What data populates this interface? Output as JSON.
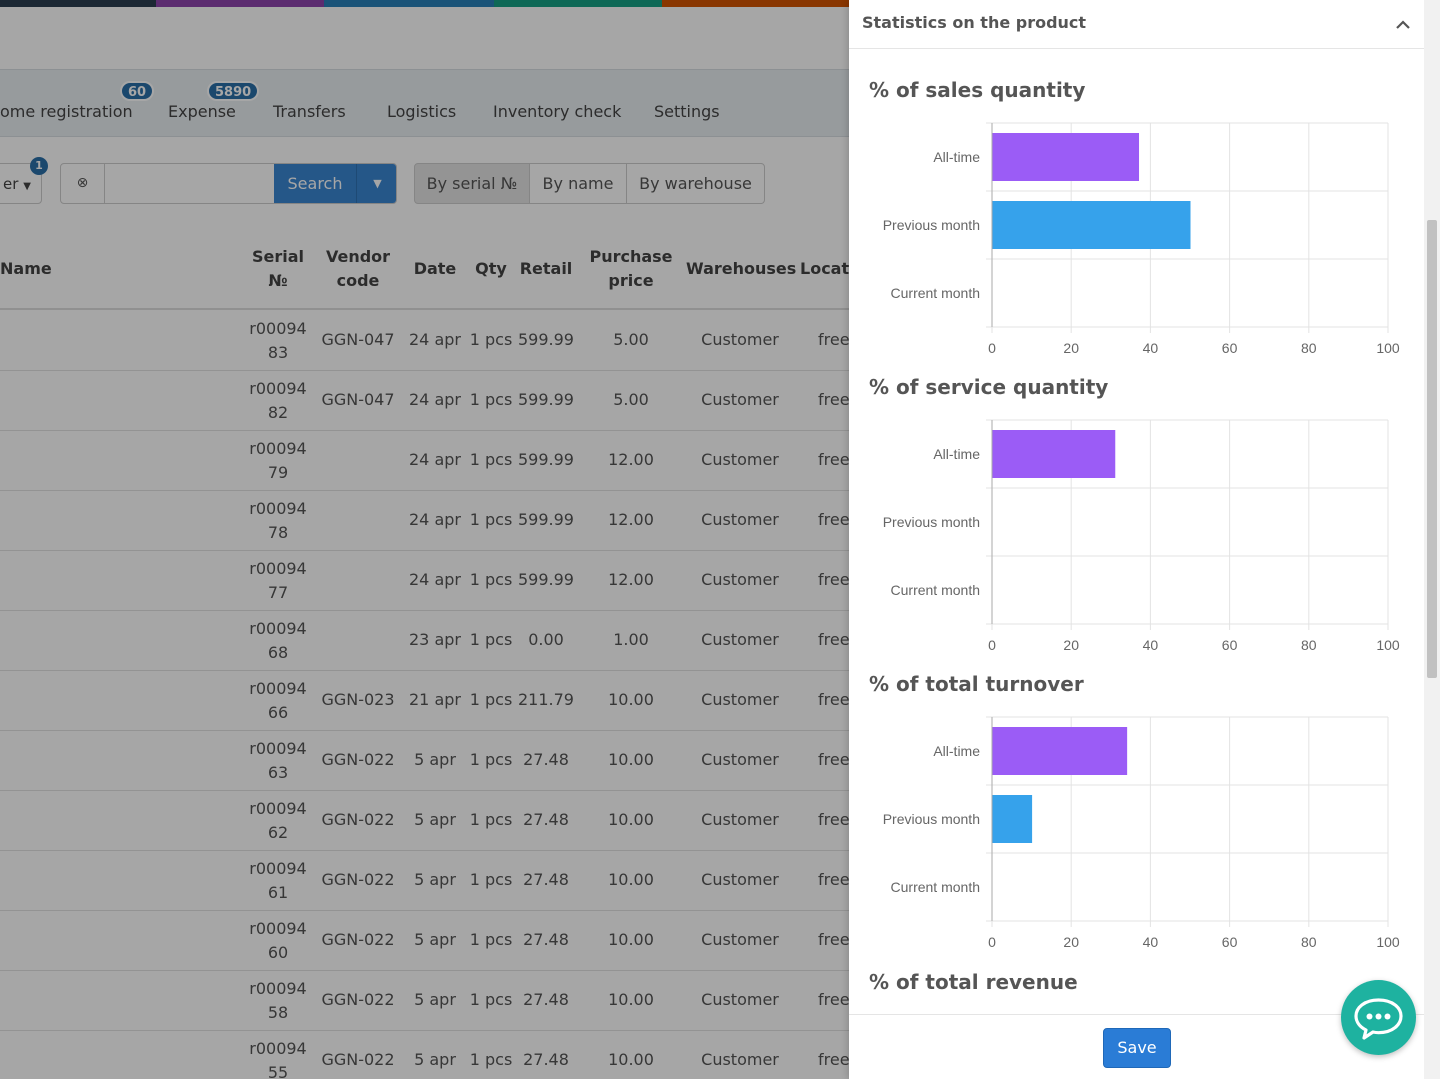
{
  "color_strip": [
    "#2c3e50",
    "#8e44ad",
    "#2980b9",
    "#16a085",
    "#d35400"
  ],
  "menu": {
    "items": [
      {
        "label": "ome registration",
        "badge": "60"
      },
      {
        "label": "Expense",
        "badge": "5890"
      },
      {
        "label": "Transfers",
        "badge": ""
      },
      {
        "label": "Logistics",
        "badge": ""
      },
      {
        "label": "Inventory check",
        "badge": ""
      },
      {
        "label": "Settings",
        "badge": ""
      }
    ]
  },
  "toolbar": {
    "filter_label": "er",
    "filter_badge": "1",
    "search_value": "",
    "search_label": "Search",
    "modes": [
      {
        "label": "By serial №",
        "active": true
      },
      {
        "label": "By name",
        "active": false
      },
      {
        "label": "By warehouse",
        "active": false
      }
    ]
  },
  "table": {
    "headers": {
      "name": "Name",
      "serial_1": "Serial",
      "serial_2": "№",
      "vendor_1": "Vendor",
      "vendor_2": "code",
      "date": "Date",
      "qty": "Qty",
      "retail": "Retail",
      "purchase_1": "Purchase",
      "purchase_2": "price",
      "warehouses": "Warehouses",
      "location": "Locati"
    },
    "rows": [
      {
        "serial_1": "r00094",
        "serial_2": "83",
        "vendor": "GGN-047",
        "date": "24 apr",
        "qty": "1 pcs",
        "retail": "599.99",
        "purchase": "5.00",
        "warehouse": "Customer",
        "location": "free"
      },
      {
        "serial_1": "r00094",
        "serial_2": "82",
        "vendor": "GGN-047",
        "date": "24 apr",
        "qty": "1 pcs",
        "retail": "599.99",
        "purchase": "5.00",
        "warehouse": "Customer",
        "location": "free"
      },
      {
        "serial_1": "r00094",
        "serial_2": "79",
        "vendor": "",
        "date": "24 apr",
        "qty": "1 pcs",
        "retail": "599.99",
        "purchase": "12.00",
        "warehouse": "Customer",
        "location": "free"
      },
      {
        "serial_1": "r00094",
        "serial_2": "78",
        "vendor": "",
        "date": "24 apr",
        "qty": "1 pcs",
        "retail": "599.99",
        "purchase": "12.00",
        "warehouse": "Customer",
        "location": "free"
      },
      {
        "serial_1": "r00094",
        "serial_2": "77",
        "vendor": "",
        "date": "24 apr",
        "qty": "1 pcs",
        "retail": "599.99",
        "purchase": "12.00",
        "warehouse": "Customer",
        "location": "free"
      },
      {
        "serial_1": "r00094",
        "serial_2": "68",
        "vendor": "",
        "date": "23 apr",
        "qty": "1 pcs",
        "retail": "0.00",
        "purchase": "1.00",
        "warehouse": "Customer",
        "location": "free"
      },
      {
        "serial_1": "r00094",
        "serial_2": "66",
        "vendor": "GGN-023",
        "date": "21 apr",
        "qty": "1 pcs",
        "retail": "211.79",
        "purchase": "10.00",
        "warehouse": "Customer",
        "location": "free"
      },
      {
        "serial_1": "r00094",
        "serial_2": "63",
        "vendor": "GGN-022",
        "date": "5 apr",
        "qty": "1 pcs",
        "retail": "27.48",
        "purchase": "10.00",
        "warehouse": "Customer",
        "location": "free"
      },
      {
        "serial_1": "r00094",
        "serial_2": "62",
        "vendor": "GGN-022",
        "date": "5 apr",
        "qty": "1 pcs",
        "retail": "27.48",
        "purchase": "10.00",
        "warehouse": "Customer",
        "location": "free"
      },
      {
        "serial_1": "r00094",
        "serial_2": "61",
        "vendor": "GGN-022",
        "date": "5 apr",
        "qty": "1 pcs",
        "retail": "27.48",
        "purchase": "10.00",
        "warehouse": "Customer",
        "location": "free"
      },
      {
        "serial_1": "r00094",
        "serial_2": "60",
        "vendor": "GGN-022",
        "date": "5 apr",
        "qty": "1 pcs",
        "retail": "27.48",
        "purchase": "10.00",
        "warehouse": "Customer",
        "location": "free"
      },
      {
        "serial_1": "r00094",
        "serial_2": "58",
        "vendor": "GGN-022",
        "date": "5 apr",
        "qty": "1 pcs",
        "retail": "27.48",
        "purchase": "10.00",
        "warehouse": "Customer",
        "location": "free"
      },
      {
        "serial_1": "r00094",
        "serial_2": "55",
        "vendor": "GGN-022",
        "date": "5 apr",
        "qty": "1 pcs",
        "retail": "27.48",
        "purchase": "10.00",
        "warehouse": "Customer",
        "location": "free"
      }
    ]
  },
  "panel": {
    "title": "Statistics on the product",
    "save_label": "Save",
    "last_section_title": "% of total revenue"
  },
  "colors": {
    "all_time": "#9b5cf6",
    "previous_month": "#36a2eb",
    "accent": "#2a7cd6"
  },
  "chart_data": [
    {
      "type": "bar",
      "orientation": "horizontal",
      "title": "% of sales quantity",
      "categories": [
        "All-time",
        "Previous month",
        "Current month"
      ],
      "values": [
        37,
        50,
        0
      ],
      "xlim": [
        0,
        100
      ],
      "xticks": [
        "0",
        "20",
        "40",
        "60",
        "80",
        "100"
      ],
      "grid": true
    },
    {
      "type": "bar",
      "orientation": "horizontal",
      "title": "% of service quantity",
      "categories": [
        "All-time",
        "Previous month",
        "Current month"
      ],
      "values": [
        31,
        0,
        0
      ],
      "xlim": [
        0,
        100
      ],
      "xticks": [
        "0",
        "20",
        "40",
        "60",
        "80",
        "100"
      ],
      "grid": true
    },
    {
      "type": "bar",
      "orientation": "horizontal",
      "title": "% of total turnover",
      "categories": [
        "All-time",
        "Previous month",
        "Current month"
      ],
      "values": [
        34,
        10,
        0
      ],
      "xlim": [
        0,
        100
      ],
      "xticks": [
        "0",
        "20",
        "40",
        "60",
        "80",
        "100"
      ],
      "grid": true
    }
  ]
}
